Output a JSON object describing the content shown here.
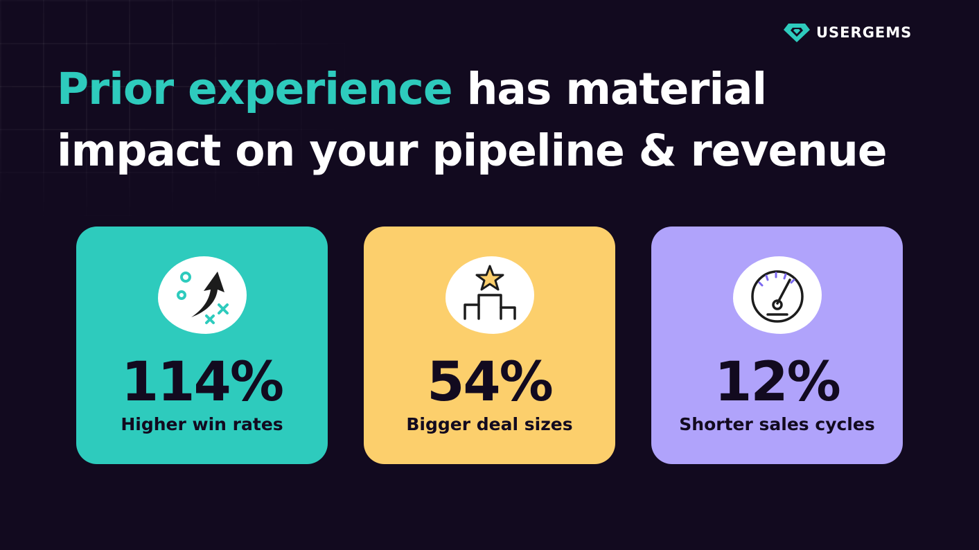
{
  "brand": {
    "name": "USERGEMS",
    "logo_color": "#2ecbbd"
  },
  "headline": {
    "accent_text": "Prior experience",
    "rest_line1": " has material",
    "line2": "impact on your pipeline & revenue",
    "accent_color": "#2ecbbd"
  },
  "stats": [
    {
      "value": "114%",
      "label": "Higher win rates",
      "icon": "arrow-up-icon",
      "color": "#2ecbbd"
    },
    {
      "value": "54%",
      "label": "Bigger deal sizes",
      "icon": "podium-star-icon",
      "color": "#fccf6c"
    },
    {
      "value": "12%",
      "label": "Shorter sales cycles",
      "icon": "speedometer-icon",
      "color": "#b0a3fb"
    }
  ],
  "colors": {
    "background": "#120a1f",
    "text_dark": "#120a1f",
    "text_light": "#ffffff"
  }
}
